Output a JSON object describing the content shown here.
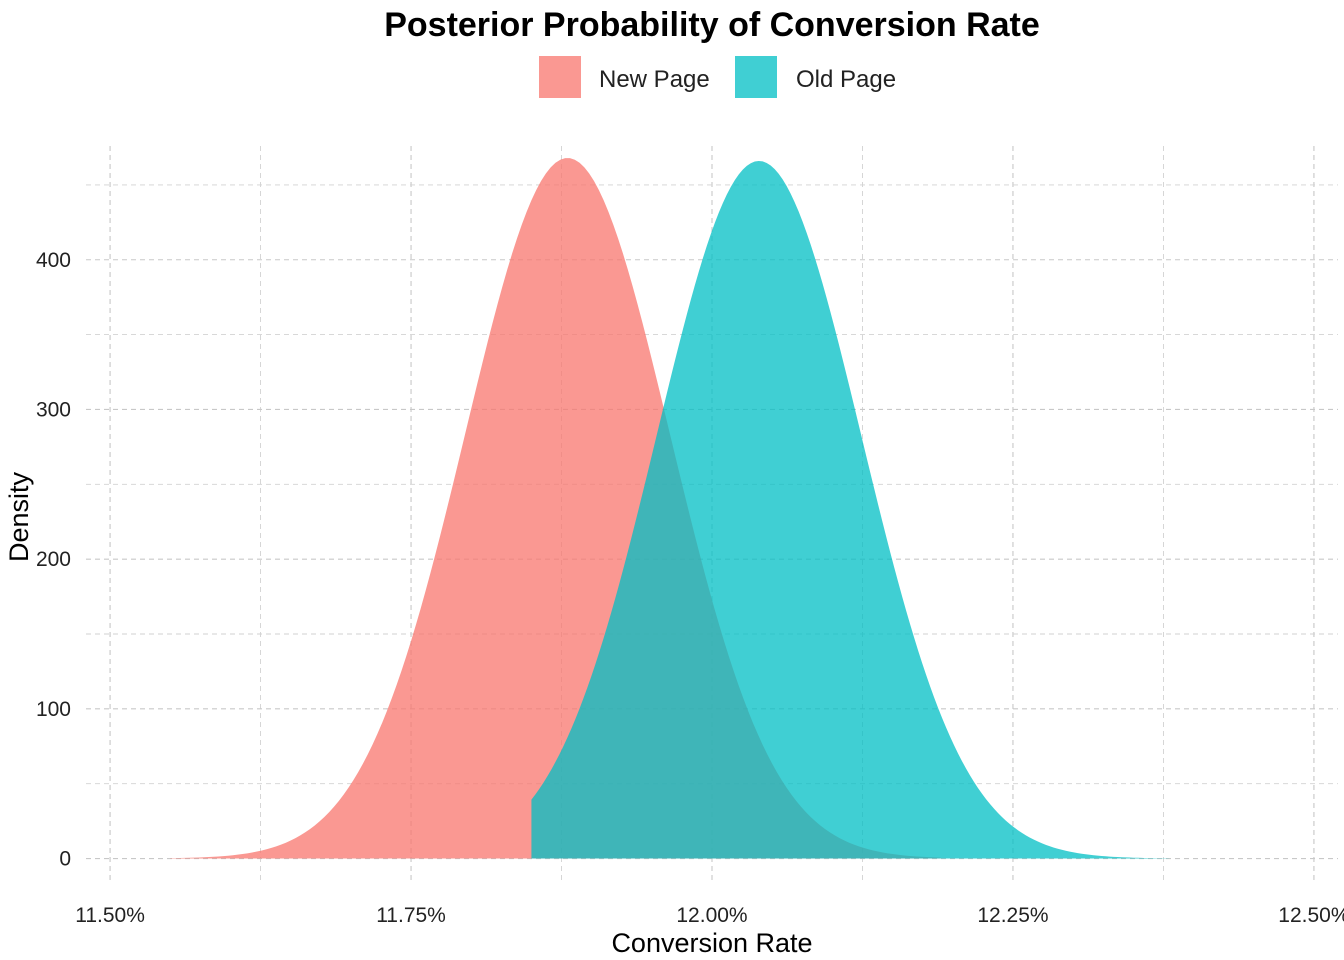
{
  "chart_data": {
    "type": "area",
    "title": "Posterior Probability of Conversion Rate",
    "xlabel": "Conversion Rate",
    "ylabel": "Density",
    "xlim": [
      0.1148,
      0.1252
    ],
    "ylim": [
      -17,
      480
    ],
    "x_ticks": [
      0.115,
      0.1175,
      0.12,
      0.1225,
      0.125
    ],
    "x_tick_labels": [
      "11.50%",
      "11.75%",
      "12.00%",
      "12.25%",
      "12.50%"
    ],
    "y_ticks": [
      0,
      100,
      200,
      300,
      400
    ],
    "y_tick_labels": [
      "0",
      "100",
      "200",
      "300",
      "400"
    ],
    "grid": true,
    "legend_position": "top",
    "series": [
      {
        "name": "New Page",
        "color": "#F8766D",
        "opacity": 0.75,
        "mean": 0.1188,
        "sd": 0.00085,
        "peak": 468,
        "x_min": 0.1155,
        "x_max": 0.1219
      },
      {
        "name": "Old Page",
        "color": "#00BFC4",
        "opacity": 0.75,
        "mean": 0.12039,
        "sd": 0.00085,
        "peak": 466,
        "x_min": 0.1185,
        "x_max": 0.1238
      }
    ]
  }
}
